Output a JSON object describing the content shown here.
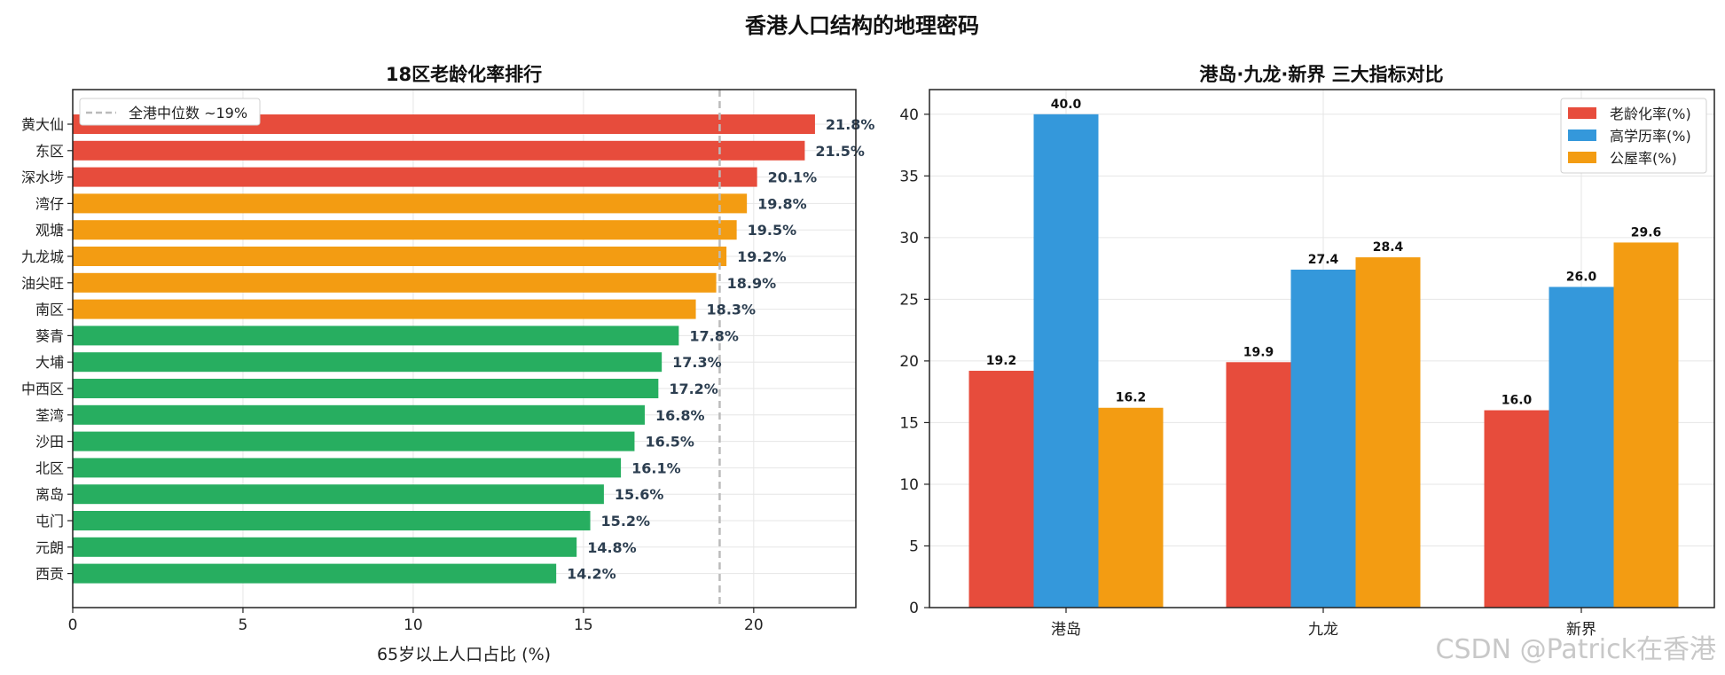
{
  "figure": {
    "suptitle": "香港人口结构的地理密码",
    "watermark": "CSDN @Patrick在香港"
  },
  "chart_data": [
    {
      "type": "bar",
      "orientation": "horizontal",
      "title": "18区老龄化率排行",
      "xlabel": "65岁以上人口占比 (%)",
      "ylabel": "",
      "xlim": [
        0,
        23
      ],
      "xticks": [
        0,
        5,
        10,
        15,
        20
      ],
      "grid": true,
      "categories": [
        "黄大仙",
        "东区",
        "深水埗",
        "湾仔",
        "观塘",
        "九龙城",
        "油尖旺",
        "南区",
        "葵青",
        "大埔",
        "中西区",
        "荃湾",
        "沙田",
        "北区",
        "离岛",
        "屯门",
        "元朗",
        "西贡"
      ],
      "values": [
        21.8,
        21.5,
        20.1,
        19.8,
        19.5,
        19.2,
        18.9,
        18.3,
        17.8,
        17.3,
        17.2,
        16.8,
        16.5,
        16.1,
        15.6,
        15.2,
        14.8,
        14.2
      ],
      "value_labels": [
        "21.8%",
        "21.5%",
        "20.1%",
        "19.8%",
        "19.5%",
        "19.2%",
        "18.9%",
        "18.3%",
        "17.8%",
        "17.3%",
        "17.2%",
        "16.8%",
        "16.5%",
        "16.1%",
        "15.6%",
        "15.2%",
        "14.8%",
        "14.2%"
      ],
      "bar_colors": [
        "#e74c3c",
        "#e74c3c",
        "#e74c3c",
        "#f39c12",
        "#f39c12",
        "#f39c12",
        "#f39c12",
        "#f39c12",
        "#27ae60",
        "#27ae60",
        "#27ae60",
        "#27ae60",
        "#27ae60",
        "#27ae60",
        "#27ae60",
        "#27ae60",
        "#27ae60",
        "#27ae60"
      ],
      "reference_line": {
        "value": 19,
        "label": "全港中位数 ~19%",
        "color": "#bbbbbb",
        "style": "dashed"
      },
      "legend_position": "top-left"
    },
    {
      "type": "bar",
      "orientation": "vertical",
      "title": "港岛·九龙·新界 三大指标对比",
      "xlabel": "",
      "ylabel": "",
      "ylim": [
        0,
        42
      ],
      "yticks": [
        0,
        5,
        10,
        15,
        20,
        25,
        30,
        35,
        40
      ],
      "grid": true,
      "categories": [
        "港岛",
        "九龙",
        "新界"
      ],
      "series": [
        {
          "name": "老龄化率(%)",
          "color": "#e74c3c",
          "values": [
            19.2,
            19.9,
            16.0
          ],
          "labels": [
            "19.2",
            "19.9",
            "16.0"
          ]
        },
        {
          "name": "高学历率(%)",
          "color": "#3498db",
          "values": [
            40.0,
            27.4,
            26.0
          ],
          "labels": [
            "40.0",
            "27.4",
            "26.0"
          ]
        },
        {
          "name": "公屋率(%)",
          "color": "#f39c12",
          "values": [
            16.2,
            28.4,
            29.6
          ],
          "labels": [
            "16.2",
            "28.4",
            "29.6"
          ]
        }
      ],
      "legend_position": "top-right"
    }
  ]
}
